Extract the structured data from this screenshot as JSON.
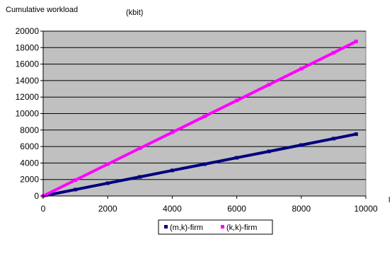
{
  "chart_data": {
    "type": "scatter",
    "title": "Cumulative workload",
    "ylabel": "(kbit)",
    "xlabel": "",
    "x_edge_label": "l",
    "xlim": [
      0,
      10000
    ],
    "ylim": [
      0,
      20000
    ],
    "x_ticks": [
      "0",
      "2000",
      "4000",
      "6000",
      "8000",
      "10000"
    ],
    "y_ticks": [
      "0",
      "2000",
      "4000",
      "6000",
      "8000",
      "10000",
      "12000",
      "14000",
      "16000",
      "18000",
      "20000"
    ],
    "grid": true,
    "plot_background": "#c0c0c0",
    "legend_position": "bottom",
    "series": [
      {
        "name": "(m,k)-firm",
        "color": "#000080",
        "marker": "diamond",
        "x": [
          0,
          1000,
          2000,
          3000,
          4000,
          5000,
          6000,
          7000,
          8000,
          9000,
          9700
        ],
        "y": [
          0,
          780,
          1550,
          2320,
          3100,
          3860,
          4640,
          5410,
          6180,
          6960,
          7500
        ]
      },
      {
        "name": "(k,k)-firm",
        "color": "#ff00ff",
        "marker": "square",
        "x": [
          0,
          1000,
          2000,
          3000,
          4000,
          5000,
          6000,
          7000,
          8000,
          9000,
          9700
        ],
        "y": [
          0,
          1930,
          3860,
          5790,
          7720,
          9650,
          11580,
          13510,
          15440,
          17370,
          18750
        ]
      }
    ]
  }
}
